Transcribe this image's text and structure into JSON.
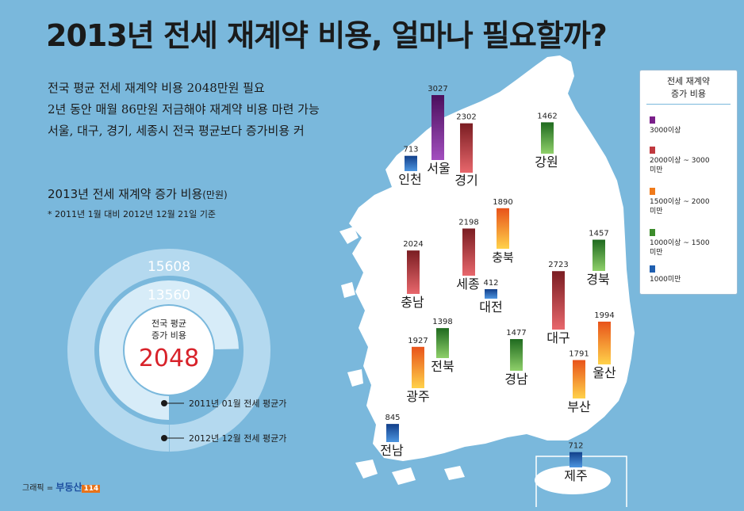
{
  "title": "2013년 전세 재계약 비용, 얼마나 필요할까?",
  "intro_lines": [
    "전국 평균 전세 재계약 비용 2048만원 필요",
    "2년 동안 매월 86만원 저금해야 재계약 비용 마련 가능",
    "서울, 대구, 경기, 세종시 전국 평균보다 증가비용 커"
  ],
  "subtitle": "2013년 전세 재계약 증가 비용",
  "subtitle_unit": "(만원)",
  "note": "* 2011년 1월 대비 2012년 12월 21일 기준",
  "credit": {
    "label": "그래픽 =",
    "brand": "부동산",
    "brand_box": "114"
  },
  "colors": {
    "background": "#7ab8dc",
    "land": "#ffffff",
    "purple": "#7a1f8a",
    "red": "#c0393f",
    "orange": "#f07a1a",
    "green": "#3c8c2c",
    "blue": "#1f5fb0",
    "national_avg": "#d8222a"
  },
  "legend": {
    "title_lines": [
      "전세 재계약",
      "증가 비용"
    ],
    "items": [
      {
        "label": "3000이상",
        "color": "purple"
      },
      {
        "label": "2000이상 ~ 3000미만",
        "color": "red"
      },
      {
        "label": "1500이상 ~ 2000미만",
        "color": "orange"
      },
      {
        "label": "1000이상 ~ 1500미만",
        "color": "green"
      },
      {
        "label": "1000미만",
        "color": "blue"
      }
    ]
  },
  "chart_data": [
    {
      "type": "bar",
      "categories": [
        "서울",
        "경기",
        "인천",
        "강원",
        "충북",
        "세종",
        "대전",
        "충남",
        "경북",
        "대구",
        "전북",
        "경남",
        "울산",
        "부산",
        "광주",
        "전남",
        "제주"
      ],
      "values": [
        3027,
        2302,
        713,
        1462,
        1890,
        2198,
        412,
        2024,
        1457,
        2723,
        1398,
        1477,
        1994,
        1791,
        1927,
        845,
        712
      ]
    },
    {
      "type": "pie",
      "center_label_lines": [
        "전국 평균",
        "증가 비용"
      ],
      "center_value": "2048",
      "rings": [
        {
          "label": "2011년 01월 전세 평균가",
          "value": 13560
        },
        {
          "label": "2012년 12월 전세 평균가",
          "value": 15608
        }
      ]
    }
  ]
}
